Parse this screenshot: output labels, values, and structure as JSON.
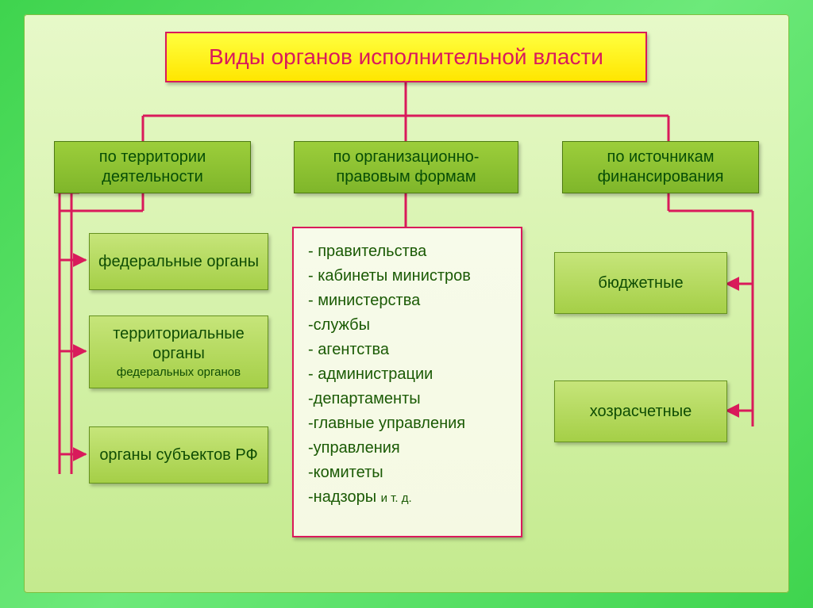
{
  "type": "flowchart",
  "background": {
    "outer_gradient": [
      "#3fd44e",
      "#6de97a",
      "#3fd44e"
    ],
    "inner_gradient": [
      "#e7f9c9",
      "#d6f2ac",
      "#c4ea8e"
    ]
  },
  "connector_color": "#d91a5b",
  "connector_width": 3,
  "title": {
    "text": "Виды органов исполнительной власти",
    "fontsize": 28,
    "bg": [
      "#ffff3f",
      "#ffe600"
    ],
    "border": "#d91a5b",
    "text_color": "#d91a5b"
  },
  "categories": [
    {
      "id": "cat-territory",
      "label": "по территории деятельности"
    },
    {
      "id": "cat-forms",
      "label": "по организационно-правовым формам"
    },
    {
      "id": "cat-finance",
      "label": "по источникам финансирования"
    }
  ],
  "category_style": {
    "bg": [
      "#9cce3b",
      "#7fb62a"
    ],
    "border": "#4d7a12",
    "text_color": "#064d06",
    "fontsize": 20
  },
  "leaf_style": {
    "bg": [
      "#c6e57a",
      "#a5cf47"
    ],
    "border": "#65921f",
    "text_color": "#0f4d04",
    "fontsize": 20
  },
  "left_leaves": [
    {
      "label": "федеральные органы",
      "sublabel": ""
    },
    {
      "label": "территориальные органы",
      "sublabel": "федеральных органов"
    },
    {
      "label": "органы субъектов РФ",
      "sublabel": ""
    }
  ],
  "right_leaves": [
    {
      "label": "бюджетные"
    },
    {
      "label": "хозрасчетные"
    }
  ],
  "center_list": {
    "bg": [
      "#f7fbea",
      "#f5f9e3"
    ],
    "border": "#d91a5b",
    "text_color": "#1a5a04",
    "items": [
      "правительства",
      "кабинеты министров",
      "министерства",
      "службы",
      "агентства",
      "администрации",
      "департаменты",
      "главные управления",
      "управления",
      "комитеты",
      "надзоры"
    ],
    "tail": "и т. д."
  }
}
